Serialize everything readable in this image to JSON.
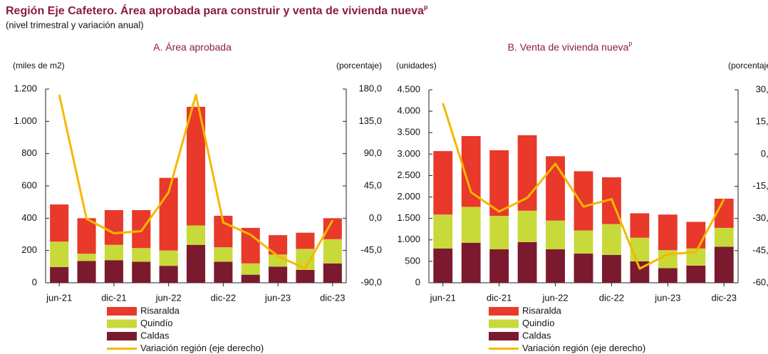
{
  "header": {
    "title": "Región Eje Cafetero. Área aprobada para construir y venta de vivienda nueva",
    "title_mark": "p",
    "subtitle": "(nivel trimestral y variación anual)"
  },
  "chart_data": [
    {
      "type": "bar",
      "stacked": true,
      "title": "A. Área aprobada",
      "ylabel": "(miles de m2)",
      "y2label": "(porcentaje)",
      "categories": [
        "jun-21",
        null,
        "dic-21",
        null,
        "jun-22",
        null,
        "dic-22",
        null,
        "jun-23",
        null,
        "dic-23"
      ],
      "ylim": [
        0,
        1200
      ],
      "yticks": [
        0,
        200,
        400,
        600,
        800,
        {
          "value": 1000,
          "label": "1.000"
        },
        {
          "value": 1200,
          "label": "1.200"
        }
      ],
      "y2lim": [
        -90,
        180
      ],
      "y2ticks": [
        {
          "value": -90,
          "label": "-90,0"
        },
        {
          "value": -45,
          "label": "-45,0"
        },
        {
          "value": 0,
          "label": "0,0"
        },
        {
          "value": 45,
          "label": "45,0"
        },
        {
          "value": 90,
          "label": "90,0"
        },
        {
          "value": 135,
          "label": "135,0"
        },
        {
          "value": 180,
          "label": "180,0"
        }
      ],
      "series": [
        {
          "name": "Risaralda",
          "color": "#e8392a",
          "values": [
            230,
            220,
            215,
            235,
            450,
            735,
            195,
            220,
            120,
            100,
            130
          ]
        },
        {
          "name": "Quindío",
          "color": "#c8d93a",
          "values": [
            158,
            45,
            95,
            85,
            95,
            120,
            90,
            70,
            75,
            130,
            150
          ]
        },
        {
          "name": "Caldas",
          "color": "#7b1a2e",
          "values": [
            97,
            135,
            140,
            130,
            105,
            235,
            130,
            50,
            100,
            80,
            120
          ]
        },
        {
          "name": "Variación región (eje derecho)",
          "color": "#f5b800",
          "type": "line",
          "axis": "y2",
          "values": [
            172,
            -1,
            -21,
            -18,
            36,
            172,
            -6,
            -23,
            -53,
            -70,
            -3
          ]
        }
      ]
    },
    {
      "type": "bar",
      "stacked": true,
      "title": "B. Venta de vivienda nueva",
      "title_mark": "p",
      "ylabel": "(unidades)",
      "y2label": "(porcentaje)",
      "categories": [
        "jun-21",
        null,
        "dic-21",
        null,
        "jun-22",
        null,
        "dic-22",
        null,
        "jun-23",
        null,
        "dic-23"
      ],
      "ylim": [
        0,
        4500
      ],
      "yticks": [
        0,
        500,
        {
          "value": 1000,
          "label": "1.000"
        },
        {
          "value": 1500,
          "label": "1.500"
        },
        {
          "value": 2000,
          "label": "2.000"
        },
        {
          "value": 2500,
          "label": "2.500"
        },
        {
          "value": 3000,
          "label": "3.000"
        },
        {
          "value": 3500,
          "label": "3.500"
        },
        {
          "value": 4000,
          "label": "4.000"
        },
        {
          "value": 4500,
          "label": "4.500"
        }
      ],
      "y2lim": [
        -60,
        30
      ],
      "y2ticks": [
        {
          "value": -60,
          "label": "-60,0"
        },
        {
          "value": -45,
          "label": "-45,0"
        },
        {
          "value": -30,
          "label": "-30,0"
        },
        {
          "value": -15,
          "label": "-15,0"
        },
        {
          "value": 0,
          "label": "0,0"
        },
        {
          "value": 15,
          "label": "15,0"
        },
        {
          "value": 30,
          "label": "30,0"
        }
      ],
      "series": [
        {
          "name": "Risaralda",
          "color": "#e8392a",
          "values": [
            1480,
            1650,
            1530,
            1760,
            1500,
            1380,
            1090,
            570,
            830,
            620,
            680
          ]
        },
        {
          "name": "Quindío",
          "color": "#c8d93a",
          "values": [
            790,
            840,
            780,
            730,
            670,
            540,
            720,
            550,
            420,
            400,
            440
          ]
        },
        {
          "name": "Caldas",
          "color": "#7b1a2e",
          "values": [
            800,
            930,
            780,
            950,
            780,
            680,
            650,
            500,
            340,
            400,
            840
          ]
        },
        {
          "name": "Variación región (eje derecho)",
          "color": "#f5b800",
          "type": "line",
          "axis": "y2",
          "values": [
            23.7,
            -17.8,
            -26.8,
            -20.4,
            -4.5,
            -24.5,
            -21,
            -53.4,
            -46.7,
            -45.7,
            -21
          ]
        }
      ]
    }
  ]
}
